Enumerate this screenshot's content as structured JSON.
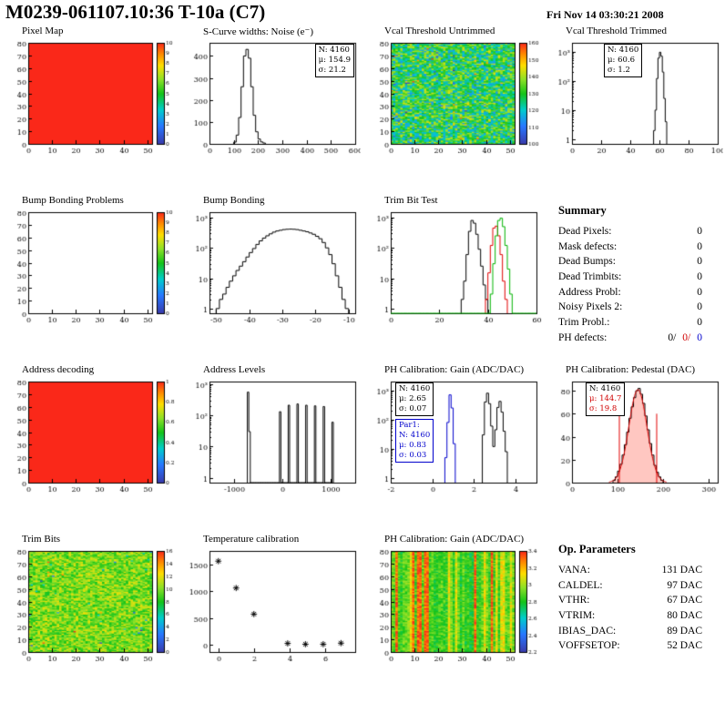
{
  "header": {
    "title": "M0239-061107.10:36 T-10a (C7)",
    "date": "Fri Nov 14 03:30:21 2008"
  },
  "summary": {
    "title": "Summary",
    "rows": [
      {
        "label": "Dead Pixels:",
        "value": "0"
      },
      {
        "label": "Mask defects:",
        "value": "0"
      },
      {
        "label": "Dead Bumps:",
        "value": "0"
      },
      {
        "label": "Dead Trimbits:",
        "value": "0"
      },
      {
        "label": "Address Probl:",
        "value": "0"
      },
      {
        "label": "Noisy Pixels 2:",
        "value": "0"
      },
      {
        "label": "Trim Probl.:",
        "value": "0"
      }
    ],
    "ph_defects": {
      "label": "PH defects:",
      "values": [
        "0/",
        "0/",
        "0"
      ]
    }
  },
  "op_params": {
    "title": "Op. Parameters",
    "rows": [
      {
        "label": "VANA:",
        "value": "131 DAC"
      },
      {
        "label": "CALDEL:",
        "value": "97 DAC"
      },
      {
        "label": "VTHR:",
        "value": "67 DAC"
      },
      {
        "label": "VTRIM:",
        "value": "80 DAC"
      },
      {
        "label": "IBIAS_DAC:",
        "value": "89 DAC"
      },
      {
        "label": "VOFFSETOP:",
        "value": "52 DAC"
      }
    ]
  },
  "chart_data": [
    {
      "name": "pixel_map",
      "type": "heatmap",
      "title": "Pixel Map",
      "xlim": [
        0,
        52
      ],
      "ylim": [
        0,
        80
      ],
      "xticks": [
        0,
        10,
        20,
        30,
        40,
        50
      ],
      "yticks": [
        0,
        10,
        20,
        30,
        40,
        50,
        60,
        70,
        80
      ],
      "style": "uniform",
      "zlim": [
        0,
        10
      ],
      "colorbar_ticks": [
        0,
        1,
        2,
        3,
        4,
        5,
        6,
        7,
        8,
        9,
        10
      ]
    },
    {
      "name": "scurve_noise",
      "type": "bar",
      "title": "S-Curve widths: Noise (e⁻)",
      "xlim": [
        0,
        600
      ],
      "ylim": [
        0,
        460
      ],
      "xticks": [
        0,
        100,
        200,
        300,
        400,
        500,
        600
      ],
      "yticks": [
        0,
        100,
        200,
        300,
        400
      ],
      "bin_width": 10,
      "series": [
        {
          "color": "#000000",
          "bins": [
            [
              100,
              8
            ],
            [
              110,
              40
            ],
            [
              120,
              120
            ],
            [
              130,
              260
            ],
            [
              140,
              400
            ],
            [
              150,
              430
            ],
            [
              160,
              390
            ],
            [
              170,
              260
            ],
            [
              180,
              130
            ],
            [
              190,
              55
            ],
            [
              200,
              22
            ],
            [
              210,
              9
            ],
            [
              220,
              4
            ]
          ]
        }
      ],
      "stats": [
        "N: 4160",
        "μ: 154.9",
        "σ: 21.2"
      ]
    },
    {
      "name": "vcal_threshold_untrimmed",
      "type": "heatmap",
      "title": "Vcal Threshold Untrimmed",
      "xlim": [
        0,
        52
      ],
      "ylim": [
        0,
        80
      ],
      "xticks": [
        0,
        10,
        20,
        30,
        40,
        50
      ],
      "yticks": [
        0,
        10,
        20,
        30,
        40,
        50,
        60,
        70,
        80
      ],
      "style": "noise",
      "seed": 11,
      "noise": {
        "center": 0.48,
        "spread": 0.5,
        "outlier": 0.04
      },
      "zlim": [
        100,
        160
      ],
      "colorbar_ticks": [
        100,
        110,
        120,
        130,
        140,
        150,
        160
      ]
    },
    {
      "name": "vcal_threshold_trimmed",
      "type": "bar",
      "title": "Vcal Threshold Trimmed",
      "logy": true,
      "xlim": [
        0,
        100
      ],
      "ylim": [
        0.7,
        2000
      ],
      "xticks": [
        0,
        20,
        40,
        60,
        80,
        100
      ],
      "bin_width": 1,
      "series": [
        {
          "color": "#000000",
          "bins": [
            [
              56,
              2
            ],
            [
              57,
              10
            ],
            [
              58,
              120
            ],
            [
              59,
              600
            ],
            [
              60,
              950
            ],
            [
              61,
              700
            ],
            [
              62,
              200
            ],
            [
              63,
              25
            ],
            [
              64,
              4
            ]
          ]
        }
      ],
      "stats": [
        "N: 4160",
        "μ: 60.6",
        "σ: 1.2"
      ]
    },
    {
      "name": "bump_bonding_problems",
      "type": "heatmap",
      "title": "Bump Bonding Problems",
      "xlim": [
        0,
        52
      ],
      "ylim": [
        0,
        80
      ],
      "xticks": [
        0,
        10,
        20,
        30,
        40,
        50
      ],
      "yticks": [
        0,
        10,
        20,
        30,
        40,
        50,
        60,
        70,
        80
      ],
      "style": "blank",
      "zlim": [
        0,
        10
      ],
      "colorbar_ticks": [
        0,
        1,
        2,
        3,
        4,
        5,
        6,
        7,
        8,
        9,
        10
      ]
    },
    {
      "name": "bump_bonding",
      "type": "bar",
      "title": "Bump Bonding",
      "logy": true,
      "xlim": [
        -52,
        -8
      ],
      "ylim": [
        0.7,
        1500
      ],
      "xticks": [
        -50,
        -40,
        -30,
        -20,
        -10
      ],
      "bin_width": 1,
      "series": [
        {
          "color": "#000000",
          "bins": [
            [
              -50,
              1
            ],
            [
              -49,
              2
            ],
            [
              -48,
              3
            ],
            [
              -47,
              5
            ],
            [
              -46,
              8
            ],
            [
              -45,
              12
            ],
            [
              -44,
              18
            ],
            [
              -43,
              25
            ],
            [
              -42,
              35
            ],
            [
              -41,
              50
            ],
            [
              -40,
              70
            ],
            [
              -39,
              95
            ],
            [
              -38,
              130
            ],
            [
              -37,
              170
            ],
            [
              -36,
              210
            ],
            [
              -35,
              250
            ],
            [
              -34,
              290
            ],
            [
              -33,
              330
            ],
            [
              -32,
              360
            ],
            [
              -31,
              380
            ],
            [
              -30,
              400
            ],
            [
              -29,
              410
            ],
            [
              -28,
              415
            ],
            [
              -27,
              410
            ],
            [
              -26,
              400
            ],
            [
              -25,
              380
            ],
            [
              -24,
              360
            ],
            [
              -23,
              340
            ],
            [
              -22,
              310
            ],
            [
              -21,
              280
            ],
            [
              -20,
              240
            ],
            [
              -19,
              200
            ],
            [
              -18,
              150
            ],
            [
              -17,
              100
            ],
            [
              -16,
              60
            ],
            [
              -15,
              30
            ],
            [
              -14,
              12
            ],
            [
              -13,
              5
            ],
            [
              -12,
              2
            ],
            [
              -11,
              1
            ]
          ]
        }
      ]
    },
    {
      "name": "trim_bit_test",
      "type": "bar",
      "title": "Trim Bit Test",
      "logy": true,
      "xlim": [
        0,
        60
      ],
      "ylim": [
        0.7,
        1500
      ],
      "xticks": [
        0,
        20,
        40,
        60
      ],
      "bin_width": 1,
      "series": [
        {
          "color": "#000000",
          "bins": [
            [
              29,
              2
            ],
            [
              30,
              8
            ],
            [
              31,
              60
            ],
            [
              32,
              350
            ],
            [
              33,
              800
            ],
            [
              34,
              650
            ],
            [
              35,
              280
            ],
            [
              36,
              90
            ],
            [
              37,
              25
            ],
            [
              38,
              6
            ],
            [
              39,
              2
            ]
          ]
        },
        {
          "color": "#e00000",
          "bins": [
            [
              39,
              2
            ],
            [
              40,
              15
            ],
            [
              41,
              120
            ],
            [
              42,
              450
            ],
            [
              43,
              520
            ],
            [
              44,
              250
            ],
            [
              45,
              60
            ],
            [
              46,
              8
            ],
            [
              47,
              2
            ]
          ]
        },
        {
          "color": "#00b400",
          "full_range": true,
          "bins": [
            [
              41,
              3
            ],
            [
              42,
              30
            ],
            [
              43,
              250
            ],
            [
              44,
              800
            ],
            [
              45,
              950
            ],
            [
              46,
              500
            ],
            [
              47,
              120
            ],
            [
              48,
              20
            ],
            [
              49,
              3
            ]
          ]
        }
      ]
    },
    {
      "name": "address_decoding",
      "type": "heatmap",
      "title": "Address decoding",
      "xlim": [
        0,
        52
      ],
      "ylim": [
        0,
        80
      ],
      "xticks": [
        0,
        10,
        20,
        30,
        40,
        50
      ],
      "yticks": [
        0,
        10,
        20,
        30,
        40,
        50,
        60,
        70,
        80
      ],
      "style": "uniform",
      "zlim": [
        0,
        1
      ],
      "colorbar_ticks": [
        0,
        0.2,
        0.4,
        0.6,
        0.8,
        1
      ]
    },
    {
      "name": "address_levels",
      "type": "bar",
      "title": "Address Levels",
      "logy": true,
      "xlim": [
        -1500,
        1500
      ],
      "ylim": [
        0.7,
        1200
      ],
      "xticks": [
        -1000,
        0,
        1000
      ],
      "bin_width": 30,
      "series": [
        {
          "color": "#000000",
          "bins": [
            [
              -720,
              550
            ],
            [
              -690,
              30
            ],
            [
              -60,
              130
            ],
            [
              120,
              210
            ],
            [
              300,
              230
            ],
            [
              480,
              210
            ],
            [
              660,
              200
            ],
            [
              840,
              190
            ],
            [
              1020,
              60
            ]
          ]
        }
      ]
    },
    {
      "name": "ph_calibration_gain_hist",
      "type": "bar",
      "title": "PH Calibration: Gain (ADC/DAC)",
      "logy": true,
      "xlim": [
        -2,
        5
      ],
      "ylim": [
        0.7,
        2000
      ],
      "xticks": [
        -2,
        0,
        2,
        4
      ],
      "bin_width": 0.1,
      "series": [
        {
          "color": "#000000",
          "bins": [
            [
              2.4,
              30
            ],
            [
              2.5,
              400
            ],
            [
              2.6,
              800
            ],
            [
              2.7,
              350
            ],
            [
              2.8,
              60
            ],
            [
              2.9,
              12
            ],
            [
              3.0,
              45
            ],
            [
              3.1,
              260
            ],
            [
              3.2,
              420
            ],
            [
              3.3,
              180
            ],
            [
              3.4,
              40
            ],
            [
              3.5,
              8
            ]
          ]
        },
        {
          "color": "#0000cc",
          "bins": [
            [
              0.6,
              5
            ],
            [
              0.7,
              80
            ],
            [
              0.8,
              700
            ],
            [
              0.9,
              250
            ],
            [
              1.0,
              15
            ]
          ]
        }
      ],
      "stats": [
        "N: 4160",
        "μ: 2.65",
        "σ: 0.07"
      ],
      "stats2": [
        "Par1:",
        "N: 4160",
        "μ: 0.83",
        "σ: 0.03"
      ]
    },
    {
      "name": "ph_calibration_pedestal",
      "type": "bar",
      "title": "PH Calibration: Pedestal (DAC)",
      "xlim": [
        0,
        320
      ],
      "ylim": [
        0,
        88
      ],
      "xticks": [
        0,
        100,
        200,
        300
      ],
      "yticks": [
        0,
        20,
        40,
        60,
        80
      ],
      "bin_width": 5,
      "series": [
        {
          "color": "#000000",
          "fill": true,
          "bins": [
            [
              90,
              2
            ],
            [
              95,
              5
            ],
            [
              100,
              10
            ],
            [
              105,
              16
            ],
            [
              110,
              24
            ],
            [
              115,
              33
            ],
            [
              120,
              44
            ],
            [
              125,
              56
            ],
            [
              130,
              66
            ],
            [
              135,
              74
            ],
            [
              140,
              80
            ],
            [
              145,
              82
            ],
            [
              150,
              77
            ],
            [
              155,
              69
            ],
            [
              160,
              58
            ],
            [
              165,
              46
            ],
            [
              170,
              34
            ],
            [
              175,
              24
            ],
            [
              180,
              15
            ],
            [
              185,
              9
            ],
            [
              190,
              5
            ],
            [
              195,
              2
            ]
          ]
        }
      ],
      "fit": {
        "mu": 144.7,
        "sigma": 19.8,
        "amp": 81
      },
      "fit_lines": {
        "x": [
          104,
          186
        ],
        "h": 60
      },
      "stats": [
        "N: 4160",
        "μ: 144.7",
        "σ: 19.8"
      ]
    },
    {
      "name": "trim_bits_map",
      "type": "heatmap",
      "title": "Trim Bits",
      "xlim": [
        0,
        52
      ],
      "ylim": [
        0,
        80
      ],
      "xticks": [
        0,
        10,
        20,
        30,
        40,
        50
      ],
      "yticks": [
        0,
        10,
        20,
        30,
        40,
        50,
        60,
        70,
        80
      ],
      "style": "noise",
      "seed": 23,
      "noise": {
        "center": 0.62,
        "spread": 0.28,
        "outlier": 0.012
      },
      "zlim": [
        0,
        16
      ],
      "colorbar_ticks": [
        0,
        2,
        4,
        6,
        8,
        10,
        12,
        14,
        16
      ]
    },
    {
      "name": "temperature_calibration",
      "type": "scatter",
      "title": "Temperature calibration",
      "xlim": [
        -0.5,
        7.7
      ],
      "ylim": [
        -130,
        1750
      ],
      "xticks": [
        0,
        2,
        4,
        6
      ],
      "yticks": [
        0,
        500,
        1000,
        1500
      ],
      "points": [
        [
          0,
          1560
        ],
        [
          1,
          1060
        ],
        [
          2,
          575
        ],
        [
          3.9,
          30
        ],
        [
          4.9,
          15
        ],
        [
          5.9,
          15
        ],
        [
          6.9,
          35
        ]
      ]
    },
    {
      "name": "ph_calibration_gain_map",
      "type": "heatmap",
      "title": "PH Calibration: Gain (ADC/DAC)",
      "xlim": [
        0,
        52
      ],
      "ylim": [
        0,
        80
      ],
      "xticks": [
        0,
        10,
        20,
        30,
        40,
        50
      ],
      "yticks": [
        0,
        10,
        20,
        30,
        40,
        50,
        60,
        70,
        80
      ],
      "style": "stripes",
      "seed": 37,
      "zlim": [
        2.2,
        3.4
      ],
      "colorbar_ticks": [
        2.2,
        2.4,
        2.6,
        2.8,
        3,
        3.2,
        3.4
      ]
    }
  ]
}
